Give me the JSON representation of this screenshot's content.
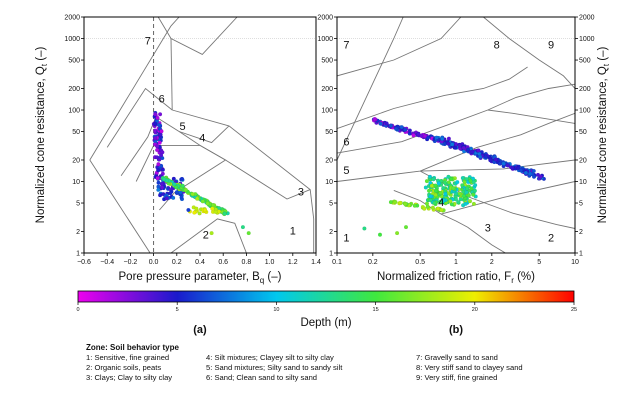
{
  "chart_data": [
    {
      "type": "scatter",
      "panel_label": "(a)",
      "xlabel_main": "Pore pressure parameter, B",
      "xlabel_sub": "q",
      "xlabel_unit": " (–)",
      "ylabel_main": "Normalized cone resistance, Q",
      "ylabel_sub": "t",
      "ylabel_unit": " (–)",
      "xscale": "linear",
      "yscale": "log",
      "xlim": [
        -0.6,
        1.4
      ],
      "ylim": [
        1,
        2000
      ],
      "x_ticks": [
        "−0.6",
        "−0.4",
        "−0.2",
        "0.0",
        "0.2",
        "0.4",
        "0.6",
        "0.8",
        "1.0",
        "1.2",
        "1.4"
      ],
      "y_ticks": [
        "1",
        "2",
        "5",
        "10",
        "20",
        "50",
        "100",
        "200",
        "500",
        "1000",
        "2000"
      ],
      "zone_labels": [
        {
          "text": "7",
          "x": -0.05,
          "y": 900
        },
        {
          "text": "6",
          "x": 0.07,
          "y": 140
        },
        {
          "text": "5",
          "x": 0.25,
          "y": 58
        },
        {
          "text": "4",
          "x": 0.42,
          "y": 40
        },
        {
          "text": "3",
          "x": 1.27,
          "y": 7
        },
        {
          "text": "2",
          "x": 0.45,
          "y": 1.75
        },
        {
          "text": "1",
          "x": 1.2,
          "y": 2
        }
      ],
      "zone_boundaries": [
        [
          [
            -0.55,
            20
          ],
          [
            -0.03,
            1
          ]
        ],
        [
          [
            -0.55,
            20
          ],
          [
            0.15,
            1500
          ]
        ],
        [
          [
            0.15,
            1500
          ],
          [
            0.22,
            2000
          ]
        ],
        [
          [
            0.04,
            2000
          ],
          [
            0.15,
            1000
          ],
          [
            0.42,
            600
          ],
          [
            0.72,
            2000
          ]
        ],
        [
          [
            0.15,
            1000
          ],
          [
            0.16,
            100
          ]
        ],
        [
          [
            -0.4,
            30
          ],
          [
            -0.07,
            200
          ],
          [
            0.16,
            100
          ]
        ],
        [
          [
            -0.28,
            12
          ],
          [
            -0.05,
            42
          ],
          [
            0.02,
            80
          ],
          [
            0.22,
            50
          ],
          [
            0.4,
            32
          ]
        ],
        [
          [
            -0.15,
            10
          ],
          [
            0.0,
            32
          ],
          [
            0.4,
            32
          ],
          [
            0.62,
            20
          ],
          [
            0.18,
            7
          ],
          [
            0.05,
            4
          ]
        ],
        [
          [
            0.16,
            100
          ],
          [
            0.65,
            60
          ]
        ],
        [
          [
            0.22,
            50
          ],
          [
            0.5,
            35
          ],
          [
            0.65,
            60
          ]
        ],
        [
          [
            0.4,
            32
          ],
          [
            0.62,
            20
          ]
        ],
        [
          [
            0.65,
            60
          ],
          [
            1.35,
            7.7
          ],
          [
            1.38,
            3
          ],
          [
            1.38,
            1
          ]
        ],
        [
          [
            0.62,
            20
          ],
          [
            1.15,
            5.7
          ],
          [
            1.35,
            7.7
          ]
        ],
        [
          [
            0.15,
            1
          ],
          [
            0.55,
            3
          ],
          [
            0.7,
            2.6
          ],
          [
            0.8,
            1
          ]
        ]
      ],
      "reference_lines": [
        {
          "axis": "x",
          "value": 0.0,
          "style": "dashed"
        }
      ]
    },
    {
      "type": "scatter",
      "panel_label": "(b)",
      "xlabel_main": "Normalized friction ratio, F",
      "xlabel_sub": "r",
      "xlabel_unit": " (%)",
      "ylabel_main": "Normalized cone resistance, Q",
      "ylabel_sub": "t",
      "ylabel_unit": " (–)",
      "xscale": "log",
      "yscale": "log",
      "xlim": [
        0.1,
        10
      ],
      "ylim": [
        1,
        2000
      ],
      "x_ticks": [
        "0.1",
        "0.2",
        "0.5",
        "1",
        "2",
        "5",
        "10"
      ],
      "y_ticks": [
        "1",
        "2",
        "5",
        "10",
        "20",
        "50",
        "100",
        "200",
        "500",
        "1000",
        "2000"
      ],
      "zone_labels": [
        {
          "text": "7",
          "x": 0.12,
          "y": 800
        },
        {
          "text": "8",
          "x": 2.2,
          "y": 800
        },
        {
          "text": "9",
          "x": 6.3,
          "y": 800
        },
        {
          "text": "6",
          "x": 0.12,
          "y": 35
        },
        {
          "text": "5",
          "x": 0.12,
          "y": 14
        },
        {
          "text": "4",
          "x": 0.75,
          "y": 5
        },
        {
          "text": "3",
          "x": 1.85,
          "y": 2.2
        },
        {
          "text": "2",
          "x": 6.3,
          "y": 1.6
        },
        {
          "text": "1",
          "x": 0.12,
          "y": 1.6
        }
      ],
      "zone_boundaries": [
        [
          [
            0.1,
            20
          ],
          [
            0.3,
            1000
          ],
          [
            0.36,
            2000
          ]
        ],
        [
          [
            0.1,
            300
          ],
          [
            0.3,
            500
          ],
          [
            0.75,
            1000
          ],
          [
            1.1,
            2000
          ]
        ],
        [
          [
            1.7,
            2000
          ],
          [
            2.8,
            1000
          ],
          [
            5.0,
            500
          ],
          [
            8.0,
            300
          ],
          [
            10.0,
            200
          ]
        ],
        [
          [
            0.1,
            55
          ],
          [
            0.3,
            105
          ],
          [
            0.8,
            160
          ],
          [
            1.7,
            200
          ],
          [
            2.8,
            270
          ],
          [
            4.0,
            400
          ]
        ],
        [
          [
            0.1,
            25
          ],
          [
            0.35,
            36
          ],
          [
            0.85,
            62
          ],
          [
            1.85,
            100
          ],
          [
            3.2,
            150
          ],
          [
            6.0,
            200
          ],
          [
            10.0,
            230
          ]
        ],
        [
          [
            0.1,
            10
          ],
          [
            0.5,
            14
          ],
          [
            1.5,
            30
          ],
          [
            3.5,
            45
          ],
          [
            6.0,
            65
          ],
          [
            10.0,
            90
          ]
        ],
        [
          [
            0.5,
            14
          ],
          [
            1.3,
            6
          ],
          [
            3.0,
            3.6
          ],
          [
            7.0,
            2.5
          ],
          [
            10.0,
            2.2
          ]
        ],
        [
          [
            0.3,
            7.5
          ],
          [
            0.5,
            5.4
          ],
          [
            0.75,
            3.5
          ],
          [
            1.0,
            2.8
          ],
          [
            1.25,
            2.3
          ]
        ],
        [
          [
            1.25,
            2.3
          ],
          [
            2.0,
            1.3
          ],
          [
            2.6,
            1.0
          ]
        ],
        [
          [
            0.5,
            14
          ],
          [
            2.5,
            15
          ],
          [
            10.0,
            20
          ]
        ],
        [
          [
            0.75,
            3.5
          ],
          [
            2.5,
            6.0
          ],
          [
            10.0,
            10.0
          ]
        ],
        [
          [
            1.85,
            100
          ],
          [
            3.0,
            90
          ],
          [
            10.0,
            65
          ]
        ]
      ]
    }
  ],
  "colorbar": {
    "label": "Depth (m)",
    "min": 0,
    "max": 25,
    "ticks": [
      "0",
      "5",
      "10",
      "15",
      "20",
      "25"
    ],
    "colors": [
      "#ee00ee",
      "#1a1acc",
      "#00c8ee",
      "#3fe83f",
      "#eeee00",
      "#ff0000"
    ]
  },
  "legend": {
    "title": "Zone: Soil  behavior type",
    "items": [
      "1: Sensitive, fine grained",
      "2: Organic soils, peats",
      "3: Clays; Clay to silty clay",
      "4: Silt mixtures; Clayey silt to silty clay",
      "5: Sand mixtures; Silty sand to sandy silt",
      "6: Sand; Clean sand to silty sand",
      "7: Gravelly sand to sand",
      "8: Very stiff sand to clayey sand",
      "9: Very stiff, fine grained"
    ]
  },
  "colors": {
    "axis": "#000000",
    "zone_line": "#777777",
    "grid": "#cccccc",
    "text": "#111111"
  }
}
